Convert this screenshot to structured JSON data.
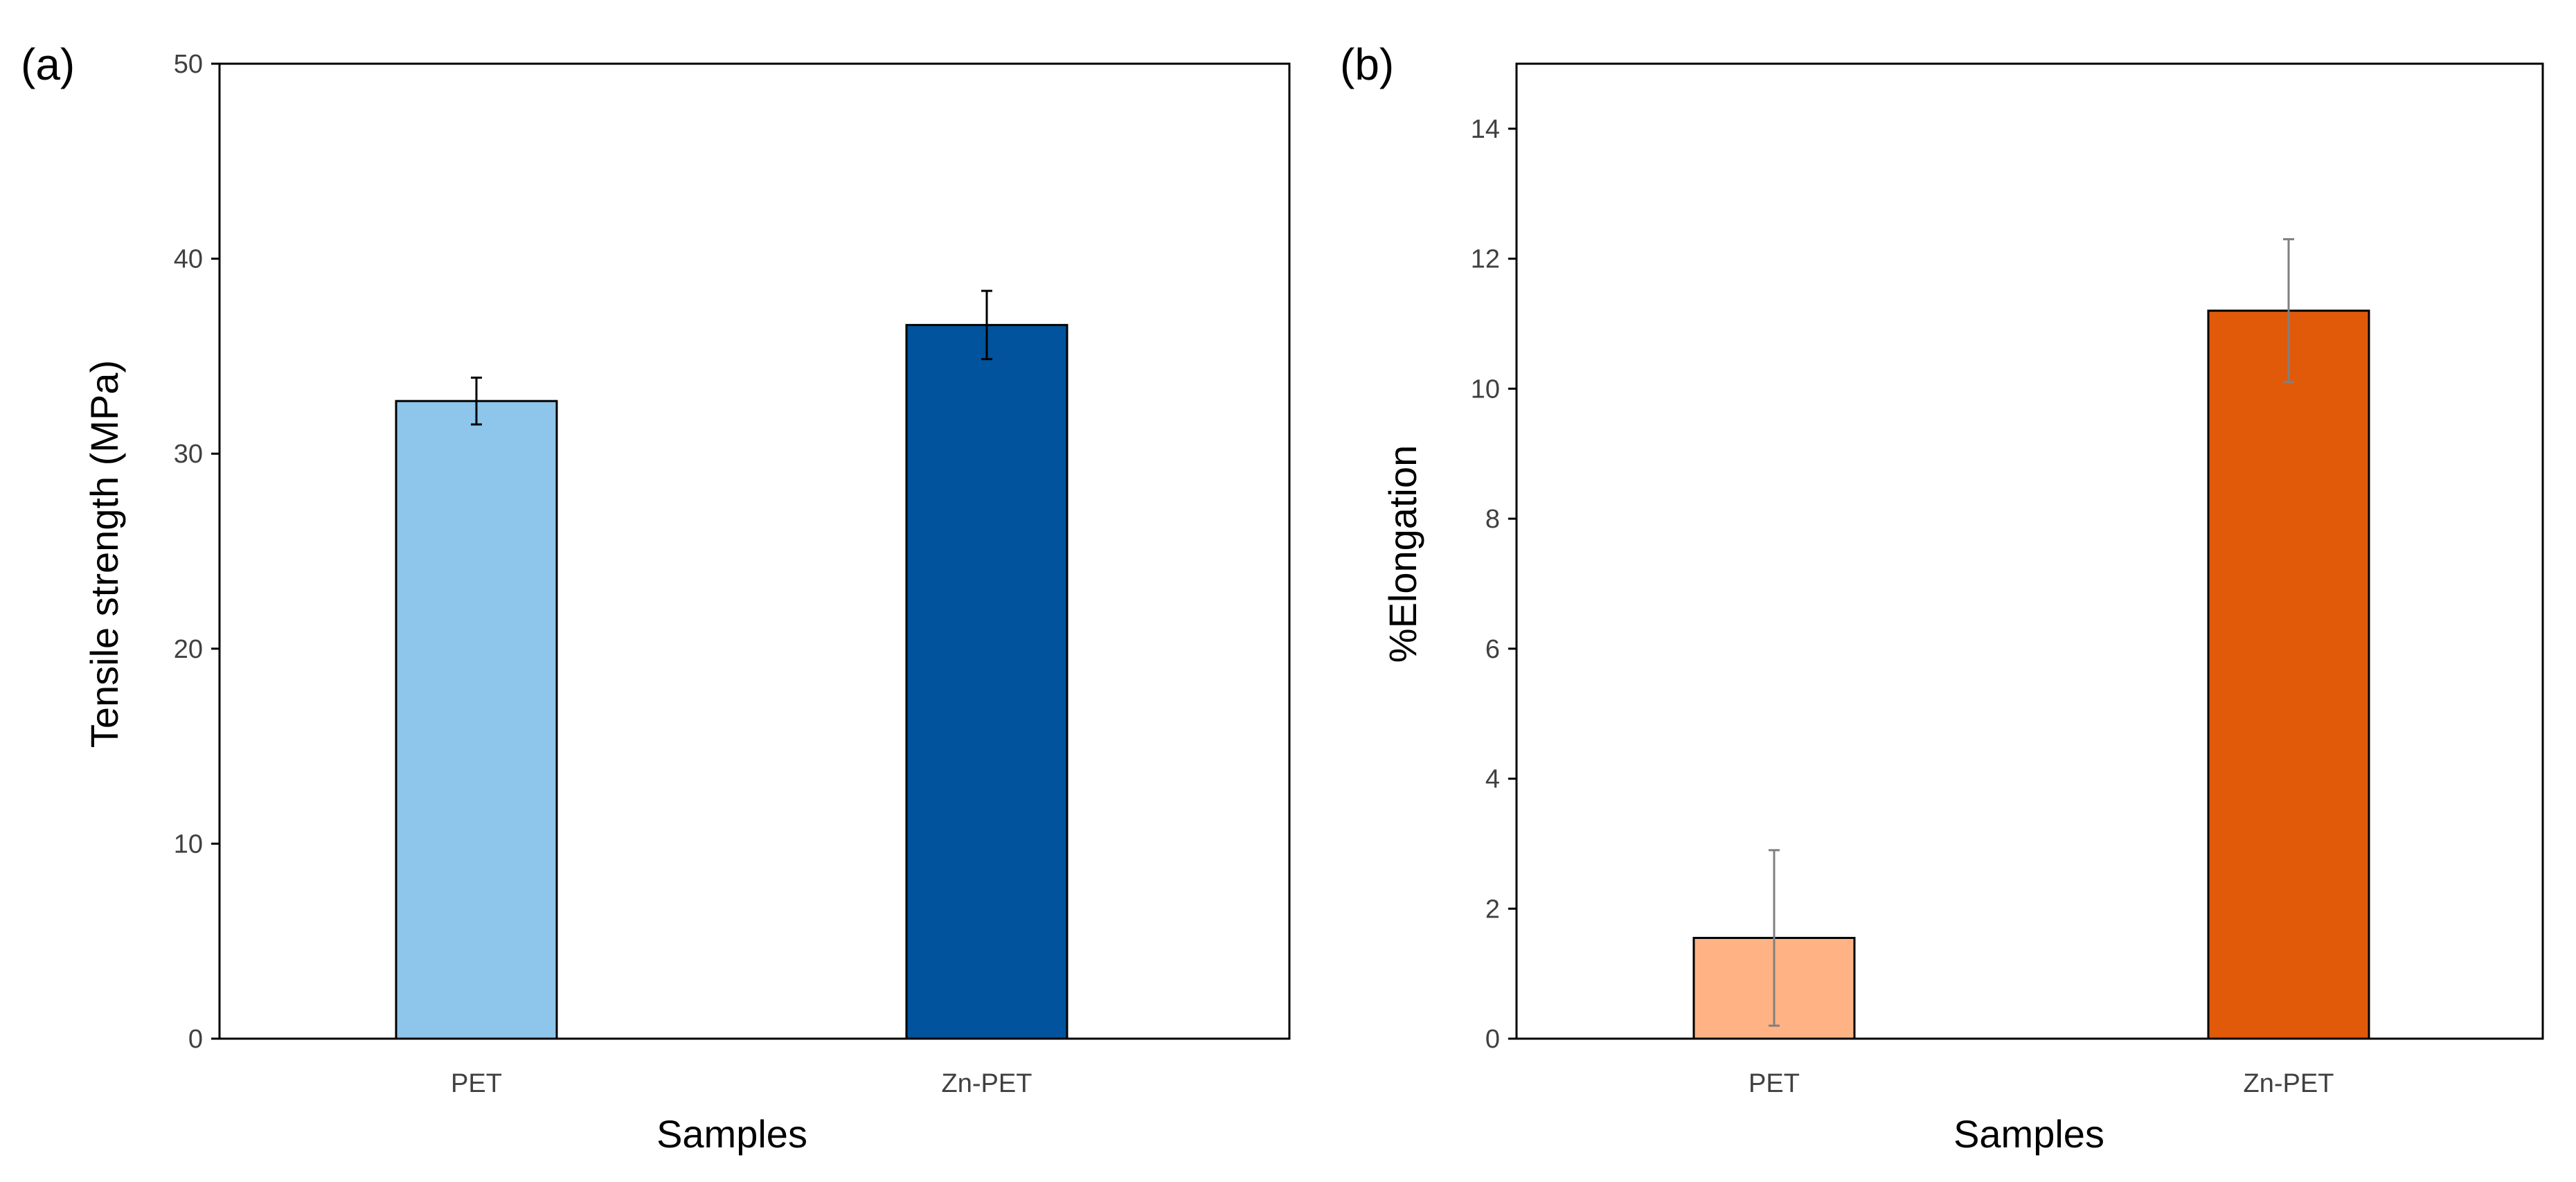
{
  "chart_data": [
    {
      "type": "bar",
      "panel_label": "(a)",
      "categories": [
        "PET",
        "Zn-PET"
      ],
      "values": [
        32.7,
        36.6
      ],
      "errors": [
        1.2,
        1.75
      ],
      "colors": [
        "#8EC5EA",
        "#00539C"
      ],
      "error_color": "#000000",
      "xlabel": "Samples",
      "ylabel": "Tensile strength (MPa)",
      "ylim": [
        0,
        50
      ],
      "yticks": [
        0,
        10,
        20,
        30,
        40,
        50
      ],
      "grid": false
    },
    {
      "type": "bar",
      "panel_label": "(b)",
      "categories": [
        "PET",
        "Zn-PET"
      ],
      "values": [
        1.55,
        11.2
      ],
      "errors": [
        1.35,
        1.1
      ],
      "colors": [
        "#FFB385",
        "#E05A0A"
      ],
      "error_color": "#808080",
      "xlabel": "Samples",
      "ylabel": "%Elongation",
      "ylim": [
        0,
        15
      ],
      "yticks": [
        0,
        2,
        4,
        6,
        8,
        10,
        12,
        14
      ],
      "grid": false
    }
  ]
}
